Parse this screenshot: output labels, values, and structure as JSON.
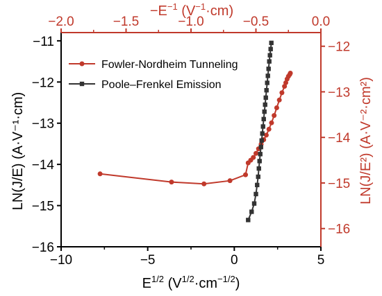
{
  "chart_data": {
    "type": "line",
    "xlabel": {
      "base": "E",
      "sup": "1/2",
      "rest1": " (V",
      "sup2": "1/2",
      "rest2": "·cm",
      "sup3": "−1/2",
      "rest3": ")"
    },
    "ylabel": "LN(J/E) (A·V⁻¹·cm)",
    "x2label": {
      "base": "−E",
      "sup": "−1",
      "rest1": " (V",
      "sup2": "−1",
      "rest2": "·cm)"
    },
    "y2label": "LN(J/E²) (A·V⁻²·cm²)",
    "xlim": [
      -10,
      5
    ],
    "ylim": [
      -16,
      -10.8
    ],
    "x2lim": [
      -2.0,
      0.0
    ],
    "y2lim": [
      -16.4,
      -11.7
    ],
    "x_ticks": [
      -10,
      -5,
      0,
      5
    ],
    "x_tick_labels": [
      "−10",
      "−5",
      "0",
      "5"
    ],
    "y_ticks": [
      -16,
      -15,
      -14,
      -13,
      -12,
      -11
    ],
    "y_tick_labels": [
      "−16",
      "−15",
      "−14",
      "−13",
      "−12",
      "−11"
    ],
    "x2_ticks": [
      -2.0,
      -1.5,
      -1.0,
      -0.5,
      0.0
    ],
    "x2_tick_labels": [
      "−2.0",
      "−1.5",
      "−1.0",
      "−0.5",
      "0.0"
    ],
    "y2_ticks": [
      -16,
      -15,
      -14,
      -13,
      -12
    ],
    "y2_tick_labels": [
      "−16",
      "−15",
      "−14",
      "−13",
      "−12"
    ],
    "legend_position": "top-left",
    "series": [
      {
        "name": "Fowler-Nordheim Tunneling",
        "color": "#c0392b",
        "marker": "circle",
        "axes": "secondary",
        "x": [
          -1.7,
          -1.15,
          -0.9,
          -0.7,
          -0.58,
          -0.56,
          -0.54,
          -0.52,
          -0.5,
          -0.48,
          -0.46,
          -0.44,
          -0.42,
          -0.4,
          -0.38,
          -0.36,
          -0.34,
          -0.32,
          -0.3,
          -0.28,
          -0.27,
          -0.26,
          -0.25,
          -0.24,
          -0.235
        ],
        "y": [
          -14.8,
          -14.98,
          -15.02,
          -14.95,
          -14.82,
          -14.56,
          -14.5,
          -14.44,
          -14.35,
          -14.25,
          -14.15,
          -14.05,
          -13.95,
          -13.82,
          -13.68,
          -13.52,
          -13.35,
          -13.18,
          -13.02,
          -12.88,
          -12.8,
          -12.72,
          -12.66,
          -12.62,
          -12.59
        ]
      },
      {
        "name": "Poole–Frenkel Emission",
        "color": "#333333",
        "marker": "square",
        "axes": "primary",
        "x": [
          0.8,
          1.0,
          1.15,
          1.25,
          1.32,
          1.38,
          1.42,
          1.46,
          1.5,
          1.54,
          1.58,
          1.62,
          1.66,
          1.7,
          1.74,
          1.78,
          1.82,
          1.86,
          1.9,
          1.94,
          1.98,
          2.02,
          2.06,
          2.1,
          2.14
        ],
        "y": [
          -15.35,
          -15.15,
          -14.95,
          -14.72,
          -14.5,
          -14.3,
          -14.1,
          -13.92,
          -13.75,
          -13.58,
          -13.42,
          -13.25,
          -13.08,
          -12.9,
          -12.72,
          -12.55,
          -12.38,
          -12.2,
          -12.02,
          -11.85,
          -11.68,
          -11.5,
          -11.35,
          -11.2,
          -11.05
        ]
      }
    ]
  }
}
